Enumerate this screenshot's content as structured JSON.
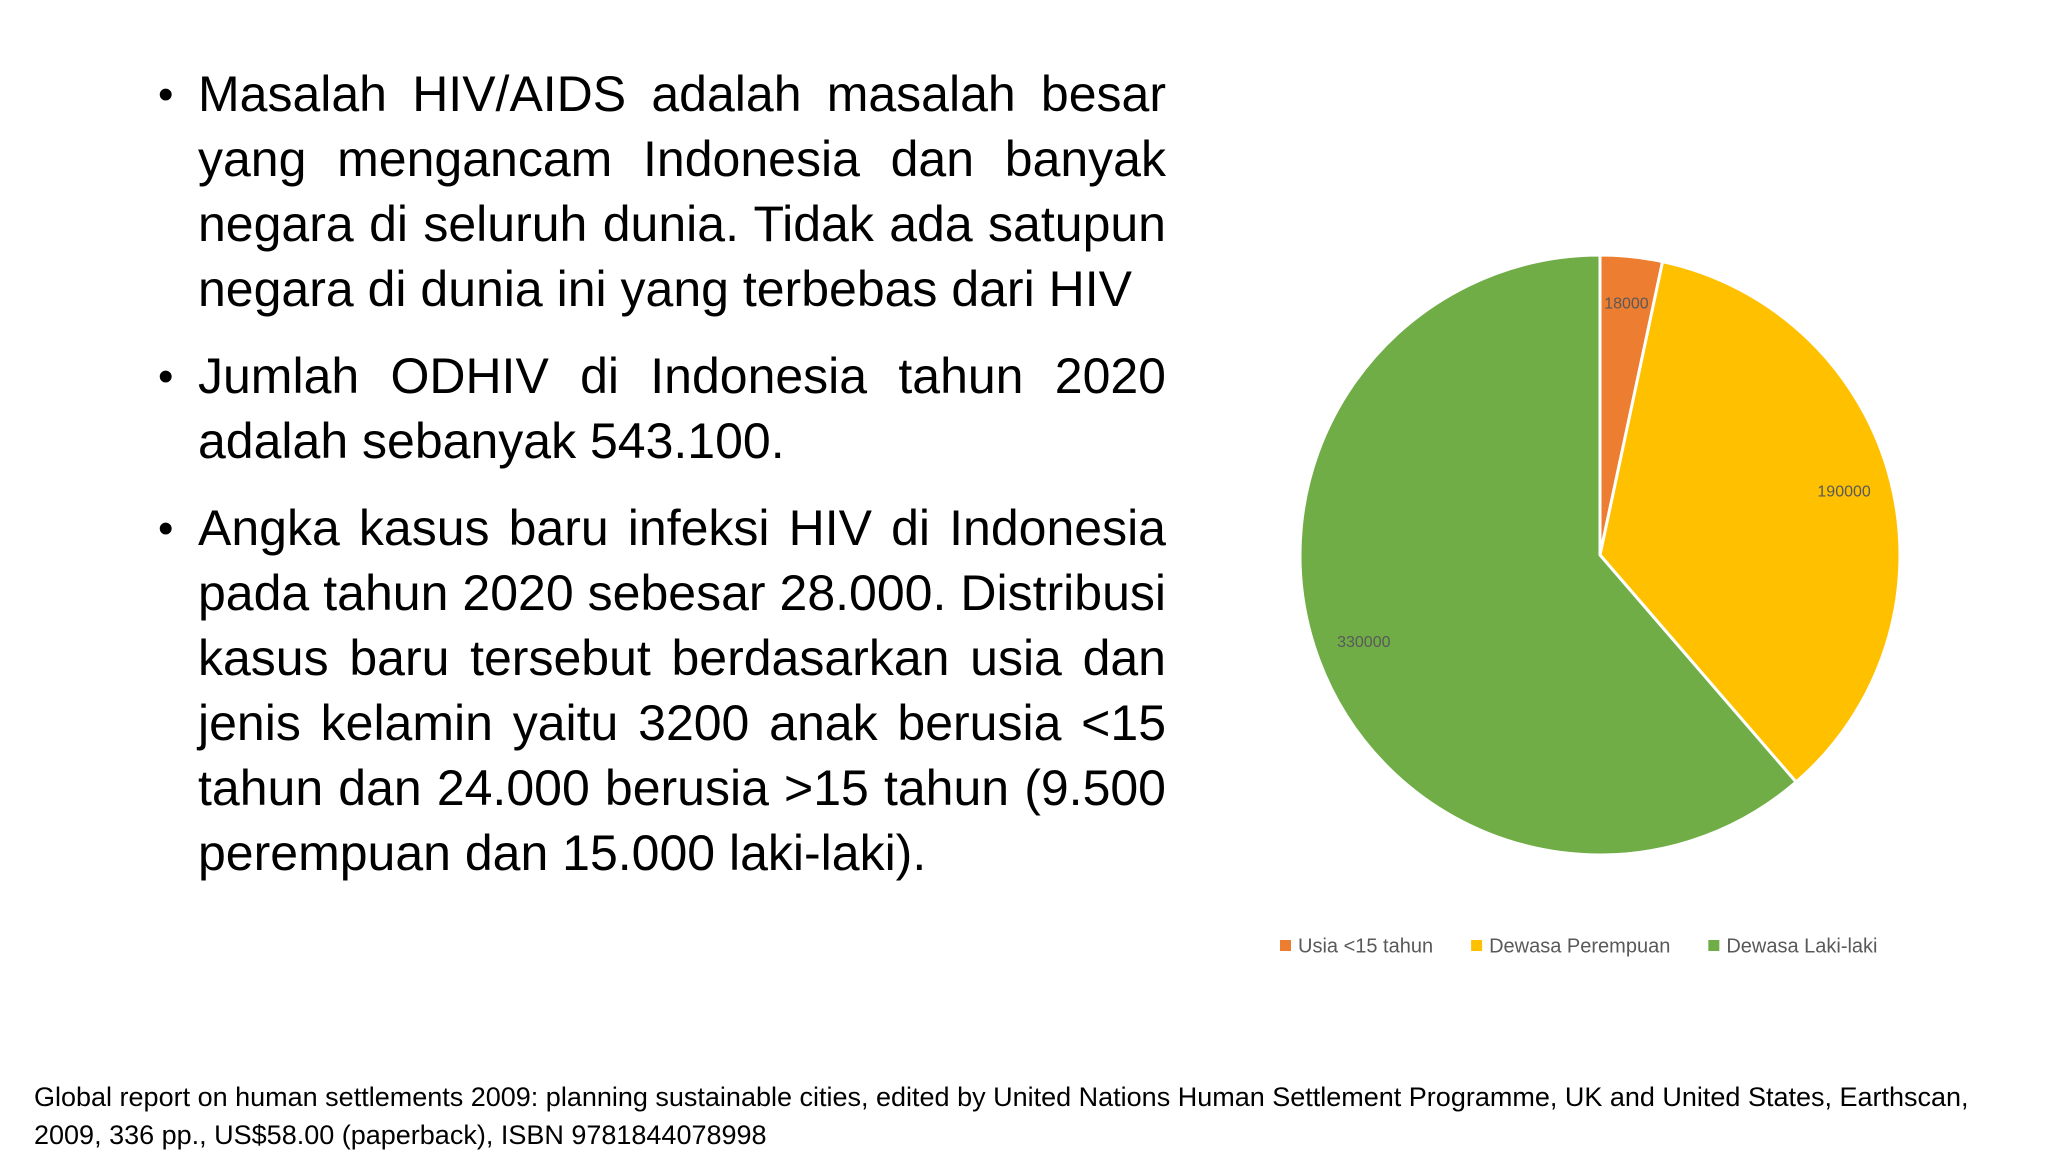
{
  "slide": {
    "bullets": [
      "Masalah HIV/AIDS adalah  masalah besar yang mengancam Indonesia dan banyak negara di seluruh dunia.  Tidak ada satupun negara di dunia ini yang terbebas dari HIV",
      "Jumlah ODHIV di Indonesia tahun 2020 adalah sebanyak 543.100.",
      "Angka kasus baru infeksi HIV di Indonesia pada tahun 2020 sebesar 28.000. Distribusi kasus baru tersebut berdasarkan usia dan jenis kelamin yaitu 3200 anak berusia <15 tahun dan 24.000 berusia >15 tahun (9.500 perempuan dan 15.000 laki-laki)."
    ],
    "bullet_symbol": "•",
    "footer": "Global report on human settlements 2009: planning sustainable cities, edited by United Nations Human Settlement Programme, UK and United States, Earthscan, 2009, 336 pp., US$58.00 (paperback), ISBN 9781844078998"
  },
  "chart_data": {
    "type": "pie",
    "title": "",
    "categories": [
      "Usia <15 tahun",
      "Dewasa Perempuan",
      "Dewasa Laki-laki"
    ],
    "values": [
      18000,
      190000,
      330000
    ],
    "data_labels": [
      "18000",
      "190000",
      "330000"
    ],
    "colors": [
      "#ED7D31",
      "#FFC000",
      "#70AD47"
    ],
    "legend_position": "bottom",
    "start_angle": "12 o'clock",
    "direction": "clockwise"
  }
}
